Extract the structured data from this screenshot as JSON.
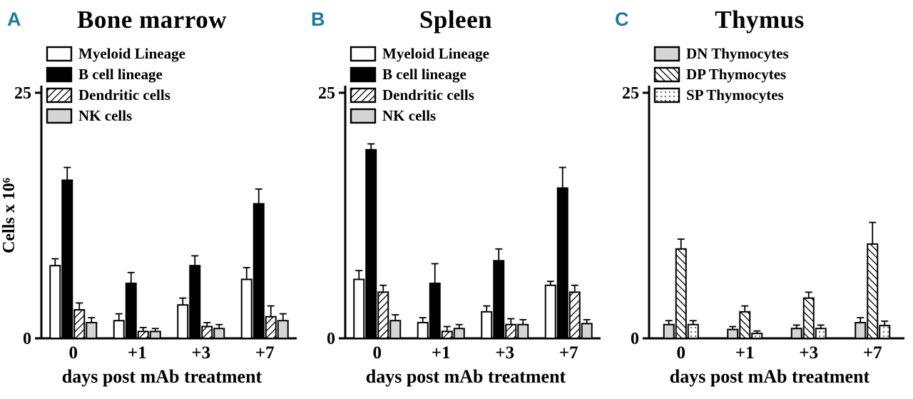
{
  "accent_color": "#1a7ba0",
  "chart_data": [
    {
      "type": "bar",
      "panel_label": "A",
      "title": "Bone marrow",
      "xlabel": "days post mAb treatment",
      "ylabel": "Cells x 10⁶",
      "ylim": [
        0,
        25
      ],
      "yticks": [
        0,
        25
      ],
      "grid": false,
      "legend_position": "top-left-inside",
      "categories": [
        "0",
        "+1",
        "+3",
        "+7"
      ],
      "series": [
        {
          "name": "Myeloid Lineage",
          "style": "solid-white",
          "values": [
            7.4,
            1.8,
            3.4,
            6.0
          ],
          "errors": [
            0.7,
            0.7,
            0.7,
            1.2
          ]
        },
        {
          "name": "B cell lineage",
          "style": "solid-black",
          "values": [
            16.1,
            5.6,
            7.4,
            13.7
          ],
          "errors": [
            1.3,
            1.1,
            1.0,
            1.5
          ]
        },
        {
          "name": "Dendritic cells",
          "style": "hatch-forward",
          "values": [
            2.9,
            0.7,
            1.2,
            2.2
          ],
          "errors": [
            0.7,
            0.4,
            0.4,
            1.1
          ]
        },
        {
          "name": "NK cells",
          "style": "solid-gray",
          "values": [
            1.6,
            0.7,
            1.0,
            1.8
          ],
          "errors": [
            0.5,
            0.3,
            0.4,
            0.7
          ]
        }
      ]
    },
    {
      "type": "bar",
      "panel_label": "B",
      "title": "Spleen",
      "xlabel": "days post mAb treatment",
      "ylabel": "",
      "ylim": [
        0,
        25
      ],
      "yticks": [
        0,
        25
      ],
      "grid": false,
      "legend_position": "top-left-inside",
      "categories": [
        "0",
        "+1",
        "+3",
        "+7"
      ],
      "series": [
        {
          "name": "Myeloid Lineage",
          "style": "solid-white",
          "values": [
            6.0,
            1.6,
            2.7,
            5.4
          ],
          "errors": [
            0.9,
            0.5,
            0.6,
            0.4
          ]
        },
        {
          "name": "B cell lineage",
          "style": "solid-black",
          "values": [
            19.2,
            5.6,
            7.9,
            15.3
          ],
          "errors": [
            0.6,
            2.0,
            1.2,
            2.1
          ]
        },
        {
          "name": "Dendritic cells",
          "style": "hatch-forward",
          "values": [
            4.7,
            0.7,
            1.4,
            4.7
          ],
          "errors": [
            0.7,
            0.5,
            0.6,
            0.7
          ]
        },
        {
          "name": "NK cells",
          "style": "solid-gray",
          "values": [
            1.8,
            1.0,
            1.4,
            1.5
          ],
          "errors": [
            0.6,
            0.4,
            0.5,
            0.4
          ]
        }
      ]
    },
    {
      "type": "bar",
      "panel_label": "C",
      "title": "Thymus",
      "xlabel": "days post mAb treatment",
      "ylabel": "",
      "ylim": [
        0,
        25
      ],
      "yticks": [
        0,
        25
      ],
      "grid": false,
      "legend_position": "top-left-inside",
      "categories": [
        "0",
        "+1",
        "+3",
        "+7"
      ],
      "series": [
        {
          "name": "DN Thymocytes",
          "style": "solid-gray",
          "values": [
            1.4,
            0.9,
            1.0,
            1.6
          ],
          "errors": [
            0.4,
            0.3,
            0.35,
            0.5
          ]
        },
        {
          "name": "DP Thymocytes",
          "style": "hatch-back",
          "values": [
            9.1,
            2.7,
            4.1,
            9.6
          ],
          "errors": [
            1.0,
            0.6,
            0.6,
            2.2
          ]
        },
        {
          "name": "SP Thymocytes",
          "style": "dots",
          "values": [
            1.4,
            0.5,
            1.0,
            1.3
          ],
          "errors": [
            0.4,
            0.25,
            0.35,
            0.45
          ]
        }
      ]
    }
  ]
}
